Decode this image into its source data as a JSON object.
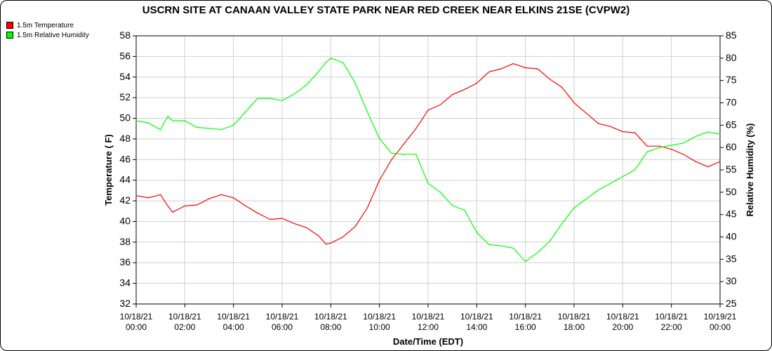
{
  "chart_data": {
    "type": "line",
    "title": "USCRN SITE AT CANAAN VALLEY STATE PARK NEAR RED CREEK NEAR ELKINS 21SE (CVPW2)",
    "xlabel": "Date/Time (EDT)",
    "ylabel": "Temperature ( F)",
    "y2label": "Relative Humidity (%)",
    "x_ticks": [
      "10/18/21 00:00",
      "10/18/21 02:00",
      "10/18/21 04:00",
      "10/18/21 06:00",
      "10/18/21 08:00",
      "10/18/21 10:00",
      "10/18/21 12:00",
      "10/18/21 14:00",
      "10/18/21 16:00",
      "10/18/21 18:00",
      "10/18/21 20:00",
      "10/18/21 22:00",
      "10/19/21 00:00"
    ],
    "ylim": [
      32,
      58
    ],
    "y_ticks": [
      32,
      34,
      36,
      38,
      40,
      42,
      44,
      46,
      48,
      50,
      52,
      54,
      56,
      58
    ],
    "y2lim": [
      25,
      85
    ],
    "y2_ticks": [
      25,
      30,
      35,
      40,
      45,
      50,
      55,
      60,
      65,
      70,
      75,
      80,
      85
    ],
    "grid": true,
    "legend": "top-left",
    "x_hours": [
      0,
      0.5,
      1,
      1.3,
      1.5,
      2,
      2.5,
      3,
      3.5,
      4,
      4.5,
      5,
      5.5,
      6,
      6.5,
      7,
      7.5,
      7.8,
      8,
      8.5,
      9,
      9.5,
      10,
      10.5,
      11,
      11.5,
      12,
      12.5,
      13,
      13.5,
      14,
      14.5,
      15,
      15.5,
      16,
      16.5,
      17,
      17.5,
      18,
      18.5,
      19,
      19.5,
      20,
      20.5,
      21,
      21.5,
      22,
      22.5,
      23,
      23.5,
      24
    ],
    "series": [
      {
        "name": "1.5m Temperature",
        "axis": "left",
        "color": "#ff0000",
        "values": [
          42.5,
          42.3,
          42.6,
          41.5,
          40.9,
          41.5,
          41.6,
          42.2,
          42.6,
          42.3,
          41.5,
          40.8,
          40.2,
          40.3,
          39.8,
          39.4,
          38.6,
          37.8,
          37.9,
          38.5,
          39.5,
          41.3,
          44.0,
          46.0,
          47.5,
          49.0,
          50.8,
          51.3,
          52.3,
          52.8,
          53.4,
          54.5,
          54.8,
          55.3,
          54.9,
          54.8,
          53.8,
          53.0,
          51.5,
          50.5,
          49.5,
          49.2,
          48.7,
          48.6,
          47.3,
          47.3,
          47.0,
          46.5,
          45.8,
          45.3,
          45.8
        ]
      },
      {
        "name": "1.5m Relative Humidity",
        "axis": "right",
        "color": "#00ff00",
        "values": [
          66,
          65.5,
          64,
          67,
          66,
          66,
          64.5,
          64.3,
          64,
          65,
          68,
          71,
          71,
          70.5,
          72,
          74,
          77,
          79,
          80,
          79,
          74.5,
          68,
          62,
          58.7,
          58.5,
          58.5,
          52,
          50,
          47,
          46,
          41,
          38.3,
          38,
          37.5,
          34.5,
          36.5,
          39,
          43,
          46.5,
          48.5,
          50.5,
          52,
          53.5,
          55,
          59,
          60,
          60.5,
          61,
          62.5,
          63.5,
          63
        ]
      }
    ]
  }
}
